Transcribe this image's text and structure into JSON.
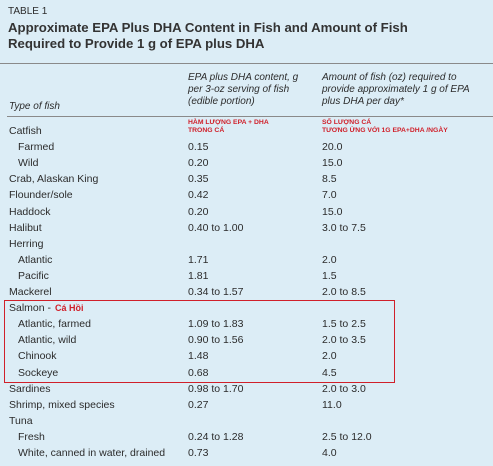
{
  "table_label": "TABLE 1",
  "title": "Approximate EPA Plus DHA Content in Fish and Amount of Fish Required to Provide 1 g of EPA plus DHA",
  "columns": [
    "Type of fish",
    "EPA plus DHA content, g per 3-oz serving of fish (edible portion)",
    "Amount of fish (oz) required to provide approximately 1 g of EPA plus DHA per day*"
  ],
  "column_notes": [
    [
      "HÀM LƯỢNG EPA + DHA",
      "TRONG CÁ"
    ],
    [
      "SỐ LƯỢNG CÁ",
      "TƯƠNG ỨNG VỚI 1G EPA+DHA  /NGÀY"
    ]
  ],
  "rows": [
    {
      "fish": "Catfish",
      "varieties": [
        {
          "fish": "Farmed",
          "content": "0.15",
          "amount": "20.0"
        },
        {
          "fish": "Wild",
          "content": "0.20",
          "amount": "15.0"
        }
      ]
    },
    {
      "fish": "Crab, Alaskan King",
      "content": "0.35",
      "amount": "8.5"
    },
    {
      "fish": "Flounder/sole",
      "content": "0.42",
      "amount": "7.0"
    },
    {
      "fish": "Haddock",
      "content": "0.20",
      "amount": "15.0"
    },
    {
      "fish": "Halibut",
      "content": "0.40 to 1.00",
      "amount": "3.0 to 7.5"
    },
    {
      "fish": "Herring",
      "varieties": [
        {
          "fish": "Atlantic",
          "content": "1.71",
          "amount": "2.0"
        },
        {
          "fish": "Pacific",
          "content": "1.81",
          "amount": "1.5"
        }
      ]
    },
    {
      "fish": "Mackerel",
      "content": "0.34 to 1.57",
      "amount": "2.0 to 8.5"
    },
    {
      "fish": "Salmon -",
      "note": "Cá Hồi",
      "varieties": [
        {
          "fish": "Atlantic, farmed",
          "content": "1.09 to 1.83",
          "amount": "1.5 to 2.5"
        },
        {
          "fish": "Atlantic, wild",
          "content": "0.90 to 1.56",
          "amount": "2.0 to 3.5"
        },
        {
          "fish": "Chinook",
          "content": "1.48",
          "amount": "2.0"
        },
        {
          "fish": "Sockeye",
          "content": "0.68",
          "amount": "4.5"
        }
      ]
    },
    {
      "fish": "Sardines",
      "content": "0.98 to 1.70",
      "amount": "2.0 to 3.0"
    },
    {
      "fish": "Shrimp, mixed species",
      "content": "0.27",
      "amount": "11.0"
    },
    {
      "fish": "Tuna",
      "varieties": [
        {
          "fish": "Fresh",
          "content": "0.24 to 1.28",
          "amount": "2.5 to 12.0"
        },
        {
          "fish": "White, canned in water, drained",
          "content": "0.73",
          "amount": "4.0"
        }
      ]
    }
  ]
}
